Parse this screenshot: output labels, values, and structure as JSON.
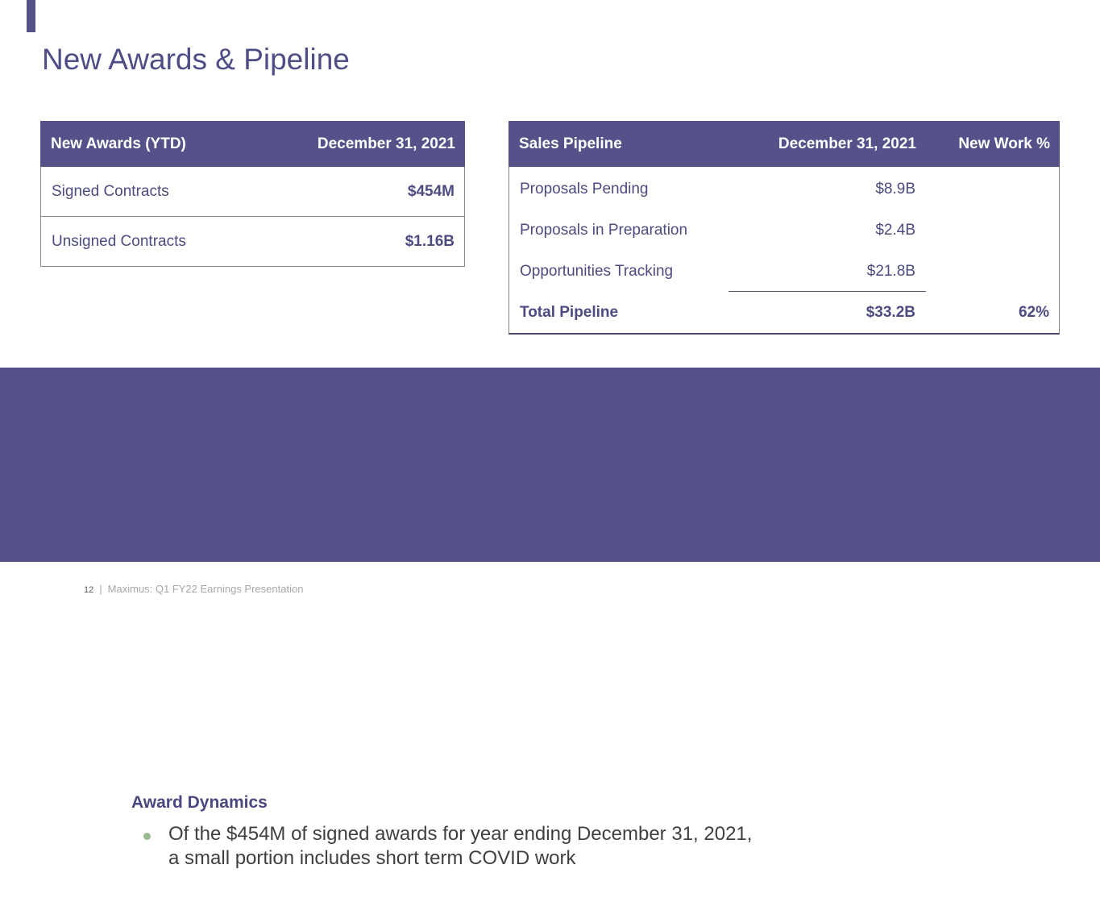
{
  "slide": {
    "title": "New Awards & Pipeline",
    "footer": {
      "page_number": "12",
      "separator": "|",
      "text": "Maximus: Q1 FY22 Earnings Presentation"
    }
  },
  "colors": {
    "accent_purple": "#555289",
    "title_text": "#4f4d85",
    "table_text": "#4d4b80",
    "header_text": "#ffffff",
    "bullet_green": "#9cba90",
    "body_text": "#3f3f3f"
  },
  "new_awards_table": {
    "header": {
      "col1": "New Awards (YTD)",
      "col2": "December 31, 2021"
    },
    "rows": [
      {
        "label": "Signed Contracts",
        "value": "$454M"
      },
      {
        "label": "Unsigned Contracts",
        "value": "$1.16B"
      }
    ]
  },
  "sales_pipeline_table": {
    "header": {
      "col1": "Sales Pipeline",
      "col2": "December 31, 2021",
      "col3": "New Work %"
    },
    "rows": [
      {
        "label": "Proposals Pending",
        "value": "$8.9B",
        "new_work_pct": ""
      },
      {
        "label": "Proposals in Preparation",
        "value": "$2.4B",
        "new_work_pct": ""
      },
      {
        "label": "Opportunities Tracking",
        "value": "$21.8B",
        "new_work_pct": ""
      },
      {
        "label": "Total Pipeline",
        "value": "$33.2B",
        "new_work_pct": "62%"
      }
    ]
  },
  "callout": {
    "heading": "Award Dynamics",
    "bullet_line1": "Of the $454M of signed awards for year ending December 31, 2021,",
    "bullet_line2": "a small portion includes short term COVID work"
  }
}
